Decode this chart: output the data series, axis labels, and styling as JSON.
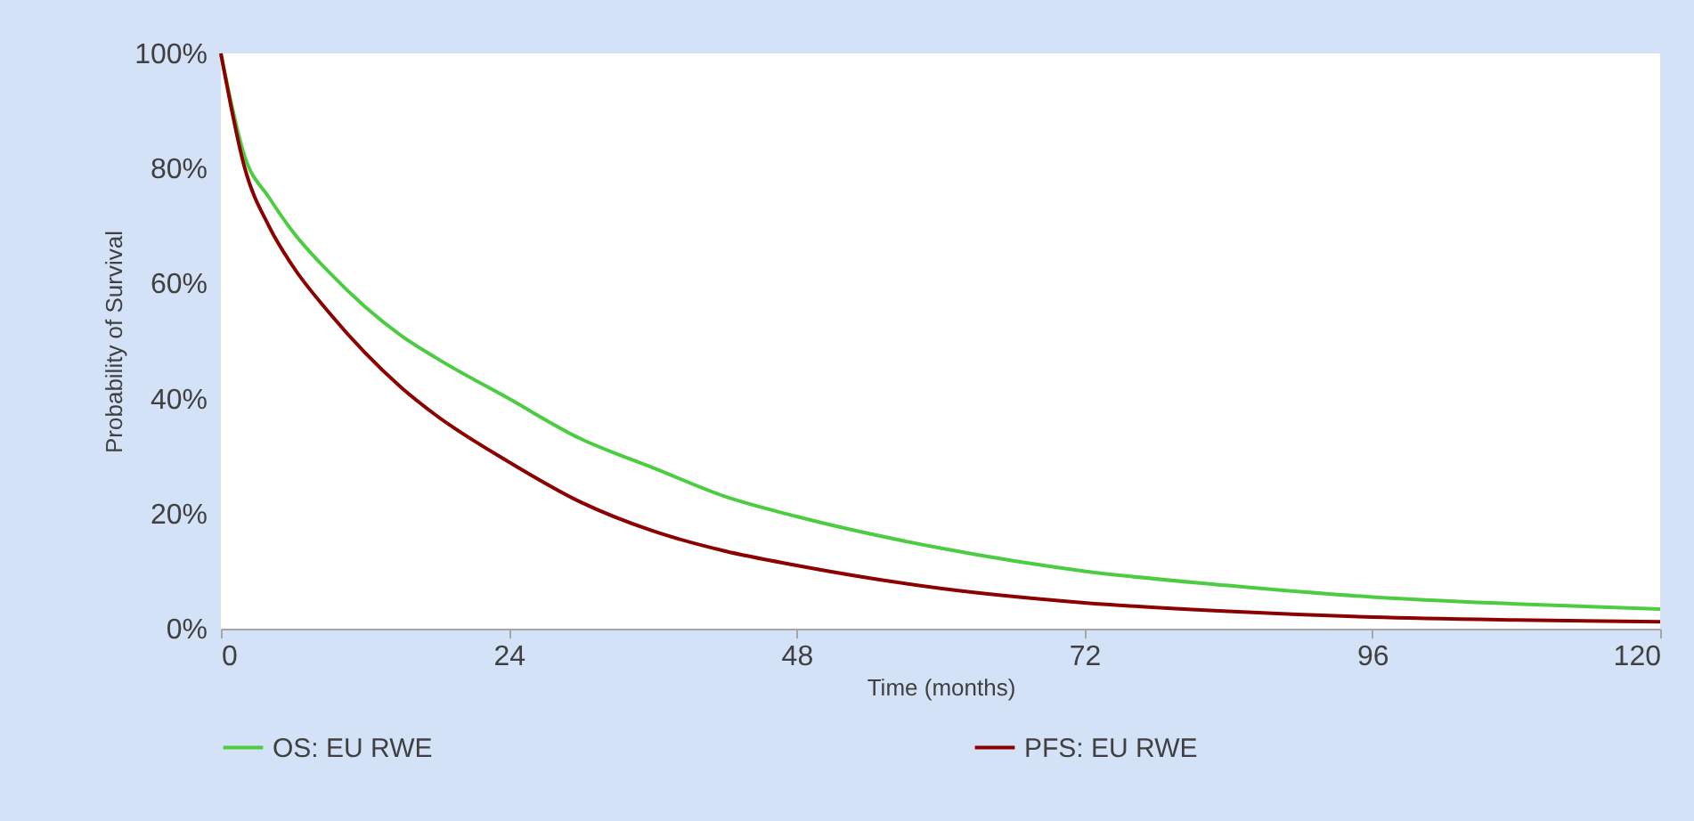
{
  "chart_data": {
    "type": "line",
    "xlabel": "Time (months)",
    "ylabel": "Probability of Survival",
    "x": [
      0,
      2,
      4,
      6,
      9,
      12,
      15,
      18,
      24,
      30,
      36,
      42,
      48,
      60,
      72,
      84,
      96,
      108,
      120
    ],
    "series": [
      {
        "name": "OS: EU RWE",
        "color": "#4ccc40",
        "values": [
          100,
          82,
          75,
          69,
          62,
          56,
          51,
          47,
          40,
          33,
          28,
          23,
          19.5,
          14,
          10,
          7.5,
          5.5,
          4.3,
          3.4
        ]
      },
      {
        "name": "PFS: EU RWE",
        "color": "#8b0000",
        "values": [
          100,
          80,
          70,
          63,
          55,
          48,
          42,
          37,
          29,
          22,
          17,
          13.5,
          11,
          7,
          4.5,
          3,
          2,
          1.5,
          1.2
        ]
      }
    ],
    "xlim": [
      0,
      120
    ],
    "xticks": [
      0,
      24,
      48,
      72,
      96,
      120
    ],
    "ylim": [
      0,
      100
    ],
    "yticks": [
      {
        "value": 0,
        "label": "0%"
      },
      {
        "value": 20,
        "label": "20%"
      },
      {
        "value": 40,
        "label": "40%"
      },
      {
        "value": 60,
        "label": "60%"
      },
      {
        "value": 80,
        "label": "80%"
      },
      {
        "value": 100,
        "label": "100%"
      }
    ],
    "grid": false,
    "legend": "bottom",
    "marker": "none",
    "line_style": "solid"
  }
}
